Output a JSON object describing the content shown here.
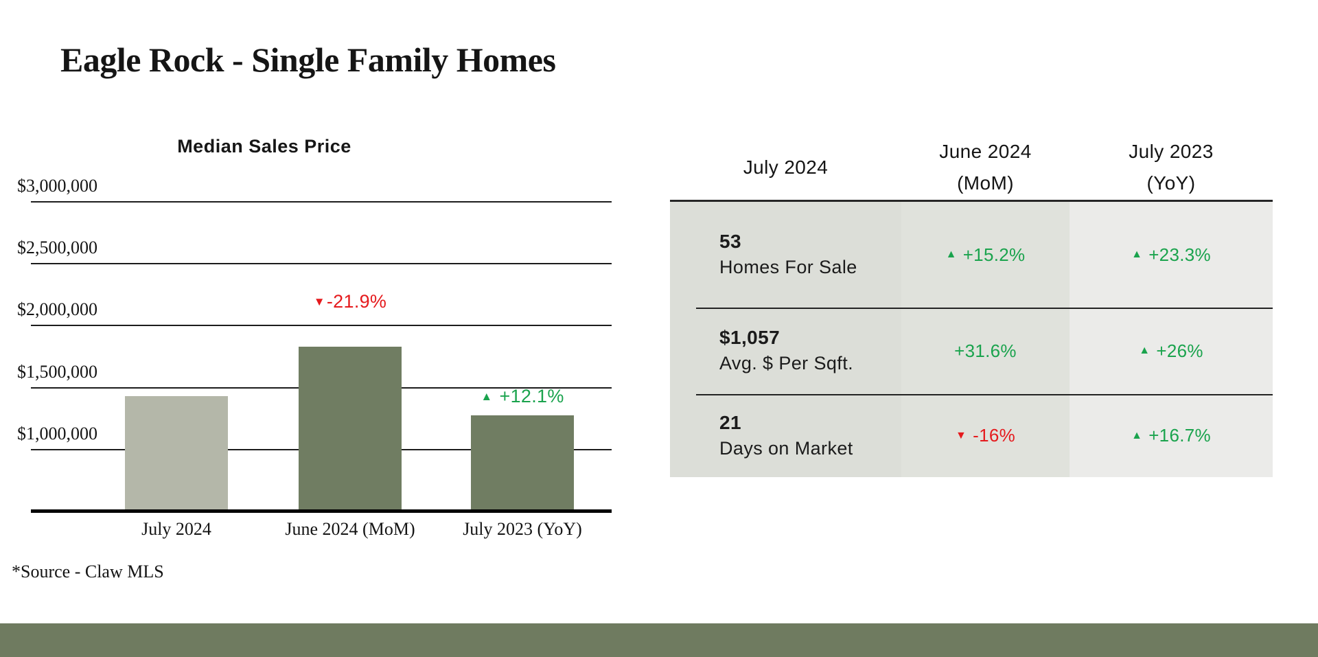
{
  "page": {
    "title": "Eagle Rock - Single Family Homes",
    "source_note": "*Source - Claw MLS"
  },
  "colors": {
    "bar_light": "#b4b7a9",
    "bar_dark": "#707d62",
    "footer_band": "#6f7b60",
    "positive": "#1aa34d",
    "negative": "#e51a1d",
    "table_col1_bg": "#dcded8",
    "table_col2_bg": "#e0e2dc",
    "table_col3_bg": "#ebebe9"
  },
  "chart_data": {
    "type": "bar",
    "title": "Median Sales Price",
    "categories": [
      "July 2024",
      "June 2024 (MoM)",
      "July 2023 (YoY)"
    ],
    "values": [
      1425000,
      1825000,
      1271000
    ],
    "bar_colors": [
      "#b4b7a9",
      "#707d62",
      "#707d62"
    ],
    "y_ticks": [
      "$3,000,000",
      "$2,500,000",
      "$2,000,000",
      "$1,500,000",
      "$1,000,000"
    ],
    "y_tick_values": [
      3000000,
      2500000,
      2000000,
      1500000,
      1000000
    ],
    "ylim": [
      500000,
      3000000
    ],
    "grid": true,
    "legend": false,
    "annotations": [
      {
        "category_index": 1,
        "text": "-21.9%",
        "direction": "down",
        "color": "#e51a1d"
      },
      {
        "category_index": 2,
        "text": "+12.1%",
        "direction": "up",
        "color": "#1aa34d"
      }
    ]
  },
  "table": {
    "headers": [
      {
        "line1": "July 2024",
        "line2": ""
      },
      {
        "line1": "June 2024",
        "line2": "(MoM)"
      },
      {
        "line1": "July 2023",
        "line2": "(YoY)"
      }
    ],
    "rows": [
      {
        "value": "53",
        "label": "Homes For Sale",
        "mom": {
          "text": "+15.2%",
          "direction": "up",
          "sentiment": "positive"
        },
        "yoy": {
          "text": "+23.3%",
          "direction": "up",
          "sentiment": "positive"
        }
      },
      {
        "value": "$1,057",
        "label": "Avg. $ Per Sqft.",
        "mom": {
          "text": "+31.6%",
          "direction": "none",
          "sentiment": "positive"
        },
        "yoy": {
          "text": "+26%",
          "direction": "up",
          "sentiment": "positive"
        }
      },
      {
        "value": "21",
        "label": "Days on Market",
        "mom": {
          "text": "-16%",
          "direction": "down",
          "sentiment": "negative"
        },
        "yoy": {
          "text": "+16.7%",
          "direction": "up",
          "sentiment": "positive"
        }
      }
    ]
  },
  "icons": {
    "up": "▲",
    "down": "▼"
  }
}
